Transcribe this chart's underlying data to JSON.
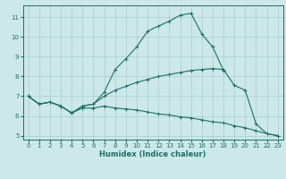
{
  "bg_color": "#cce8e8",
  "line_color": "#1e6e6a",
  "grid_color": "#aacccc",
  "xlabel": "Humidex (Indice chaleur)",
  "xlim": [
    -0.5,
    23.5
  ],
  "ylim": [
    4.8,
    11.6
  ],
  "yticks": [
    5,
    6,
    7,
    8,
    9,
    10,
    11
  ],
  "xticks": [
    0,
    1,
    2,
    3,
    4,
    5,
    6,
    7,
    8,
    9,
    10,
    11,
    12,
    13,
    14,
    15,
    16,
    17,
    18,
    19,
    20,
    21,
    22,
    23
  ],
  "line1": {
    "x": [
      0,
      1,
      2,
      3,
      4,
      5,
      6,
      7,
      8,
      9,
      10,
      11,
      12,
      13,
      14,
      15,
      16,
      17,
      18,
      19,
      20,
      21,
      22,
      23
    ],
    "y": [
      7.0,
      6.6,
      6.7,
      6.5,
      6.15,
      6.5,
      6.6,
      7.2,
      8.35,
      8.9,
      9.5,
      10.3,
      10.55,
      10.8,
      11.1,
      11.2,
      10.15,
      9.5,
      8.3,
      null,
      null,
      null,
      null,
      null
    ]
  },
  "line2": {
    "x": [
      0,
      1,
      2,
      3,
      4,
      5,
      6,
      7,
      8,
      9,
      10,
      11,
      12,
      13,
      14,
      15,
      16,
      17,
      18,
      19,
      20,
      21,
      22,
      23
    ],
    "y": [
      7.0,
      6.6,
      6.7,
      6.5,
      6.15,
      6.5,
      6.6,
      7.0,
      7.3,
      7.5,
      7.7,
      7.85,
      8.0,
      8.1,
      8.2,
      8.3,
      8.35,
      8.4,
      8.35,
      7.55,
      7.3,
      5.6,
      5.1,
      5.0
    ]
  },
  "line3": {
    "x": [
      0,
      1,
      2,
      3,
      4,
      5,
      6,
      7,
      8,
      9,
      10,
      11,
      12,
      13,
      14,
      15,
      16,
      17,
      18,
      19,
      20,
      21,
      22,
      23
    ],
    "y": [
      7.0,
      6.6,
      6.7,
      6.5,
      6.15,
      6.4,
      6.4,
      6.5,
      6.4,
      6.35,
      6.3,
      6.2,
      6.1,
      6.05,
      5.95,
      5.9,
      5.8,
      5.7,
      5.65,
      5.5,
      5.4,
      5.25,
      5.1,
      5.0
    ]
  }
}
